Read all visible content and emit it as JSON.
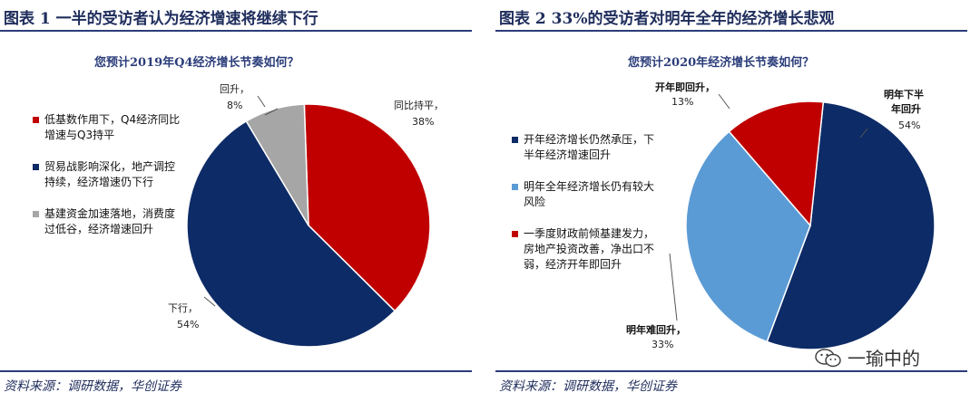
{
  "left": {
    "figure_title": "图表 1   一半的受访者认为经济增速将继续下行",
    "source": "资料来源：调研数据，华创证券"
  },
  "right": {
    "figure_title": "图表 2   33%的受访者对明年全年的经济增长悲观",
    "source": "资料来源：调研数据，华创证券"
  },
  "watermark": {
    "text": "一瑜中的",
    "icon": "wechat-icon"
  },
  "chart_data": [
    {
      "type": "pie",
      "title": "您预计2019年Q4经济增长节奏如何？",
      "series": [
        {
          "name": "低基数作用下，Q4经济同比增速与Q3持平",
          "label": "同比持平，",
          "pct_label": "38%",
          "value": 38,
          "color": "#c00000"
        },
        {
          "name": "贸易战影响深化，地产调控持续，经济增速仍下行",
          "label": "下行，",
          "pct_label": "54%",
          "value": 54,
          "color": "#0d2b66"
        },
        {
          "name": "基建资金加速落地，消费度过低谷，经济增速回升",
          "label": "回升，",
          "pct_label": "8%",
          "value": 8,
          "color": "#a6a6a6"
        }
      ]
    },
    {
      "type": "pie",
      "title": "您预计2020年经济增长节奏如何？",
      "series": [
        {
          "name": "开年经济增长仍然承压，下半年经济增速回升",
          "label": "明年下半年回升",
          "pct_label": "54%",
          "value": 54,
          "color": "#0d2b66"
        },
        {
          "name": "明年全年经济增长仍有较大风险",
          "label": "明年难回升，",
          "pct_label": "33%",
          "value": 33,
          "color": "#5b9bd5"
        },
        {
          "name": "一季度财政前倾基建发力，房地产投资改善，净出口不弱，经济开年即回升",
          "label": "开年即回升，",
          "pct_label": "13%",
          "value": 13,
          "color": "#c00000"
        }
      ]
    }
  ]
}
